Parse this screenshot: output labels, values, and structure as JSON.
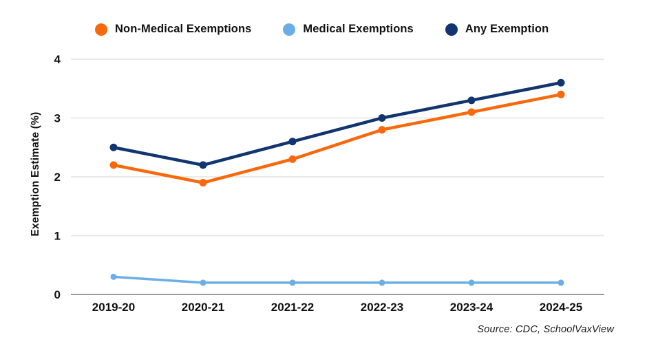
{
  "legend": {
    "items": [
      {
        "label": "Non-Medical Exemptions",
        "color": "#F8690D"
      },
      {
        "label": "Medical Exemptions",
        "color": "#6AAEE4"
      },
      {
        "label": "Any Exemption",
        "color": "#10356F"
      }
    ]
  },
  "chart_data": {
    "type": "line",
    "title": "",
    "xlabel": "",
    "ylabel": "Exemption Estimate (%)",
    "categories": [
      "2019-20",
      "2020-21",
      "2021-22",
      "2022-23",
      "2023-24",
      "2024-25"
    ],
    "series": [
      {
        "name": "Non-Medical Exemptions",
        "color": "#F8690D",
        "values": [
          2.2,
          1.9,
          2.3,
          2.8,
          3.1,
          3.4
        ]
      },
      {
        "name": "Medical Exemptions",
        "color": "#6AAEE4",
        "values": [
          0.3,
          0.2,
          0.2,
          0.2,
          0.2,
          0.2
        ]
      },
      {
        "name": "Any Exemption",
        "color": "#10356F",
        "values": [
          2.5,
          2.2,
          2.6,
          3.0,
          3.3,
          3.6
        ]
      }
    ],
    "yticks": [
      0,
      1,
      2,
      3,
      4
    ],
    "ylim": [
      0,
      4
    ],
    "grid": true,
    "grid_color": "#E4E4E4",
    "axis_color": "#9A9A9A",
    "legend_position": "top"
  },
  "source_note": "Source: CDC, SchoolVaxView"
}
